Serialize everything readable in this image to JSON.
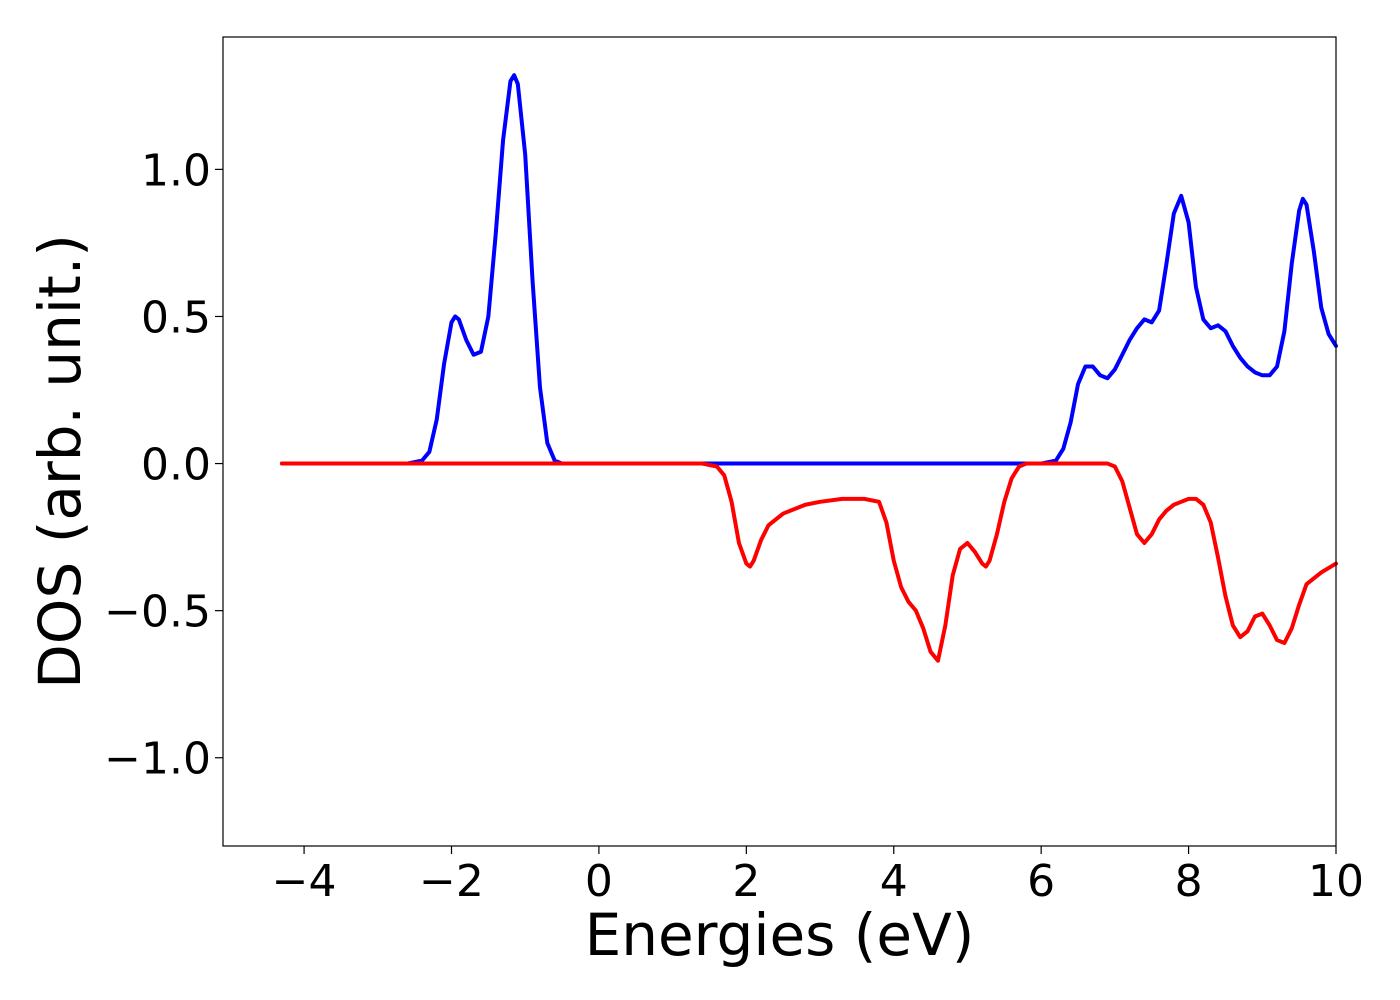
{
  "chart_data": {
    "type": "line",
    "xlabel": "Energies (eV)",
    "ylabel": "DOS (arb. unit.)",
    "xlim": [
      -5.1,
      10.0
    ],
    "ylim": [
      -1.3,
      1.45
    ],
    "xticks": [
      -4,
      -2,
      0,
      2,
      4,
      6,
      8,
      10
    ],
    "xtick_labels": [
      "−4",
      "−2",
      "0",
      "2",
      "4",
      "6",
      "8",
      "10"
    ],
    "yticks": [
      -1.0,
      -0.5,
      0.0,
      0.5,
      1.0
    ],
    "ytick_labels": [
      "−1.0",
      "−0.5",
      "0.0",
      "0.5",
      "1.0"
    ],
    "grid": false,
    "series": [
      {
        "color": "#0000ff",
        "x": [
          -4.3,
          -3.0,
          -2.6,
          -2.4,
          -2.3,
          -2.2,
          -2.1,
          -2.0,
          -1.95,
          -1.9,
          -1.8,
          -1.7,
          -1.6,
          -1.5,
          -1.4,
          -1.3,
          -1.2,
          -1.15,
          -1.1,
          -1.0,
          -0.9,
          -0.8,
          -0.7,
          -0.6,
          -0.5,
          -0.3,
          0.0,
          1.0,
          2.0,
          3.0,
          4.0,
          5.0,
          5.8,
          6.0,
          6.2,
          6.3,
          6.4,
          6.5,
          6.6,
          6.7,
          6.8,
          6.9,
          7.0,
          7.1,
          7.2,
          7.3,
          7.4,
          7.5,
          7.6,
          7.7,
          7.8,
          7.9,
          8.0,
          8.1,
          8.2,
          8.3,
          8.4,
          8.5,
          8.6,
          8.7,
          8.8,
          8.9,
          9.0,
          9.1,
          9.2,
          9.3,
          9.4,
          9.5,
          9.55,
          9.6,
          9.7,
          9.8,
          9.9,
          10.0
        ],
        "y": [
          0.0,
          0.0,
          0.0,
          0.01,
          0.04,
          0.15,
          0.34,
          0.48,
          0.5,
          0.49,
          0.42,
          0.37,
          0.38,
          0.5,
          0.78,
          1.1,
          1.3,
          1.32,
          1.29,
          1.05,
          0.62,
          0.26,
          0.07,
          0.01,
          0.0,
          0.0,
          0.0,
          0.0,
          0.0,
          0.0,
          0.0,
          0.0,
          0.0,
          0.0,
          0.01,
          0.05,
          0.14,
          0.27,
          0.33,
          0.33,
          0.3,
          0.29,
          0.32,
          0.37,
          0.42,
          0.46,
          0.49,
          0.48,
          0.52,
          0.68,
          0.85,
          0.91,
          0.82,
          0.6,
          0.49,
          0.46,
          0.47,
          0.45,
          0.4,
          0.36,
          0.33,
          0.31,
          0.3,
          0.3,
          0.33,
          0.45,
          0.68,
          0.86,
          0.9,
          0.88,
          0.72,
          0.53,
          0.44,
          0.4
        ]
      },
      {
        "color": "#ff0000",
        "x": [
          -4.3,
          -2.0,
          0.0,
          1.4,
          1.6,
          1.7,
          1.8,
          1.9,
          2.0,
          2.05,
          2.1,
          2.2,
          2.3,
          2.5,
          2.8,
          3.0,
          3.3,
          3.6,
          3.8,
          3.9,
          4.0,
          4.1,
          4.2,
          4.3,
          4.4,
          4.5,
          4.6,
          4.7,
          4.8,
          4.9,
          5.0,
          5.1,
          5.2,
          5.25,
          5.3,
          5.4,
          5.5,
          5.6,
          5.7,
          5.8,
          6.0,
          6.5,
          6.9,
          7.0,
          7.1,
          7.2,
          7.3,
          7.4,
          7.5,
          7.6,
          7.7,
          7.8,
          7.9,
          8.0,
          8.1,
          8.2,
          8.3,
          8.4,
          8.5,
          8.6,
          8.7,
          8.8,
          8.9,
          9.0,
          9.1,
          9.2,
          9.3,
          9.4,
          9.5,
          9.6,
          9.8,
          10.0
        ],
        "y": [
          0.0,
          0.0,
          0.0,
          0.0,
          -0.01,
          -0.04,
          -0.13,
          -0.27,
          -0.34,
          -0.35,
          -0.33,
          -0.26,
          -0.21,
          -0.17,
          -0.14,
          -0.13,
          -0.12,
          -0.12,
          -0.13,
          -0.2,
          -0.33,
          -0.42,
          -0.47,
          -0.5,
          -0.56,
          -0.64,
          -0.67,
          -0.55,
          -0.38,
          -0.29,
          -0.27,
          -0.3,
          -0.34,
          -0.35,
          -0.33,
          -0.24,
          -0.13,
          -0.05,
          -0.01,
          0.0,
          0.0,
          0.0,
          0.0,
          -0.01,
          -0.06,
          -0.15,
          -0.24,
          -0.27,
          -0.24,
          -0.19,
          -0.16,
          -0.14,
          -0.13,
          -0.12,
          -0.12,
          -0.14,
          -0.2,
          -0.32,
          -0.45,
          -0.55,
          -0.59,
          -0.57,
          -0.52,
          -0.51,
          -0.55,
          -0.6,
          -0.61,
          -0.56,
          -0.48,
          -0.41,
          -0.37,
          -0.34
        ]
      }
    ]
  }
}
